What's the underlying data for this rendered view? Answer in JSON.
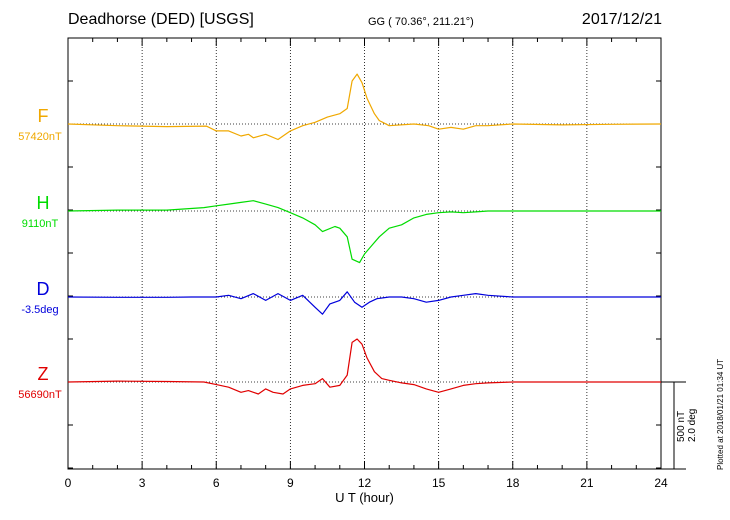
{
  "header": {
    "station": "Deadhorse (DED)  [USGS]",
    "coords": "GG ( 70.36°, 211.21°)",
    "date": "2017/12/21"
  },
  "scale": {
    "line1": "500 nT",
    "line2": "2.0 deg"
  },
  "plotted_note": "Plotted at 2018/01/21 01:34 UT",
  "chart_data": {
    "type": "line",
    "xlabel": "U T (hour)",
    "xlim": [
      0,
      24
    ],
    "xticks": [
      0,
      3,
      6,
      9,
      12,
      15,
      18,
      21,
      24
    ],
    "grid": true,
    "series": [
      {
        "name": "F",
        "baseline_label": "57420nT",
        "color": "#f0a800",
        "points": [
          [
            0,
            0
          ],
          [
            2,
            -10
          ],
          [
            4,
            -15
          ],
          [
            5.6,
            -12
          ],
          [
            6,
            -40
          ],
          [
            6.5,
            -40
          ],
          [
            7,
            -70
          ],
          [
            7.3,
            -60
          ],
          [
            7.5,
            -80
          ],
          [
            8,
            -60
          ],
          [
            8.5,
            -90
          ],
          [
            9,
            -40
          ],
          [
            9.5,
            -10
          ],
          [
            10,
            10
          ],
          [
            10.5,
            40
          ],
          [
            11,
            60
          ],
          [
            11.3,
            90
          ],
          [
            11.5,
            250
          ],
          [
            11.7,
            290
          ],
          [
            11.9,
            240
          ],
          [
            12.1,
            150
          ],
          [
            12.4,
            60
          ],
          [
            12.6,
            20
          ],
          [
            13,
            -10
          ],
          [
            14,
            0
          ],
          [
            14.6,
            -10
          ],
          [
            15,
            -30
          ],
          [
            15.5,
            -20
          ],
          [
            16,
            -30
          ],
          [
            16.5,
            -10
          ],
          [
            17,
            -10
          ],
          [
            18,
            0
          ],
          [
            20,
            -5
          ],
          [
            22,
            -2
          ],
          [
            24,
            0
          ]
        ]
      },
      {
        "name": "H",
        "baseline_label": "9110nT",
        "color": "#00dc00",
        "points": [
          [
            0,
            0
          ],
          [
            2,
            5
          ],
          [
            4,
            5
          ],
          [
            5.5,
            20
          ],
          [
            6,
            30
          ],
          [
            6.5,
            40
          ],
          [
            7,
            50
          ],
          [
            7.5,
            60
          ],
          [
            8,
            40
          ],
          [
            8.5,
            20
          ],
          [
            9,
            -10
          ],
          [
            9.5,
            -40
          ],
          [
            10,
            -80
          ],
          [
            10.3,
            -120
          ],
          [
            10.8,
            -90
          ],
          [
            11,
            -100
          ],
          [
            11.3,
            -150
          ],
          [
            11.5,
            -280
          ],
          [
            11.8,
            -300
          ],
          [
            12,
            -250
          ],
          [
            12.3,
            -200
          ],
          [
            12.6,
            -150
          ],
          [
            13,
            -100
          ],
          [
            13.5,
            -80
          ],
          [
            14,
            -40
          ],
          [
            14.5,
            -20
          ],
          [
            15,
            -10
          ],
          [
            15.5,
            -5
          ],
          [
            16,
            -10
          ],
          [
            16.5,
            -5
          ],
          [
            17,
            0
          ],
          [
            18,
            0
          ],
          [
            20,
            0
          ],
          [
            22,
            0
          ],
          [
            24,
            0
          ]
        ]
      },
      {
        "name": "D",
        "baseline_label": "-3.5deg",
        "color": "#0000dc",
        "points": [
          [
            0,
            0
          ],
          [
            2,
            -2
          ],
          [
            4,
            -2
          ],
          [
            5,
            0
          ],
          [
            6,
            0
          ],
          [
            6.5,
            10
          ],
          [
            7,
            -10
          ],
          [
            7.5,
            20
          ],
          [
            8,
            -20
          ],
          [
            8.5,
            20
          ],
          [
            9,
            -20
          ],
          [
            9.5,
            10
          ],
          [
            10,
            -60
          ],
          [
            10.3,
            -100
          ],
          [
            10.6,
            -40
          ],
          [
            11,
            -20
          ],
          [
            11.3,
            30
          ],
          [
            11.6,
            -30
          ],
          [
            11.9,
            -60
          ],
          [
            12.2,
            -30
          ],
          [
            12.5,
            -10
          ],
          [
            13,
            0
          ],
          [
            13.5,
            0
          ],
          [
            14,
            -10
          ],
          [
            14.5,
            -30
          ],
          [
            15,
            -20
          ],
          [
            15.5,
            0
          ],
          [
            16,
            10
          ],
          [
            16.5,
            20
          ],
          [
            17,
            10
          ],
          [
            18,
            0
          ],
          [
            20,
            0
          ],
          [
            22,
            0
          ],
          [
            24,
            0
          ]
        ]
      },
      {
        "name": "Z",
        "baseline_label": "56690nT",
        "color": "#e00000",
        "points": [
          [
            0,
            0
          ],
          [
            2,
            5
          ],
          [
            4,
            3
          ],
          [
            5.5,
            0
          ],
          [
            6,
            -15
          ],
          [
            6.5,
            -30
          ],
          [
            7,
            -60
          ],
          [
            7.3,
            -50
          ],
          [
            7.7,
            -70
          ],
          [
            8,
            -40
          ],
          [
            8.3,
            -60
          ],
          [
            8.7,
            -70
          ],
          [
            9,
            -40
          ],
          [
            9.5,
            -20
          ],
          [
            10,
            -10
          ],
          [
            10.3,
            20
          ],
          [
            10.6,
            -30
          ],
          [
            11,
            -20
          ],
          [
            11.3,
            40
          ],
          [
            11.5,
            230
          ],
          [
            11.7,
            250
          ],
          [
            11.9,
            220
          ],
          [
            12.1,
            140
          ],
          [
            12.4,
            60
          ],
          [
            12.7,
            20
          ],
          [
            13,
            10
          ],
          [
            13.5,
            -5
          ],
          [
            14,
            -15
          ],
          [
            14.5,
            -40
          ],
          [
            15,
            -60
          ],
          [
            15.5,
            -40
          ],
          [
            16,
            -20
          ],
          [
            16.5,
            -10
          ],
          [
            17,
            -5
          ],
          [
            18,
            0
          ],
          [
            20,
            0
          ],
          [
            22,
            0
          ],
          [
            24,
            0
          ]
        ]
      }
    ]
  }
}
